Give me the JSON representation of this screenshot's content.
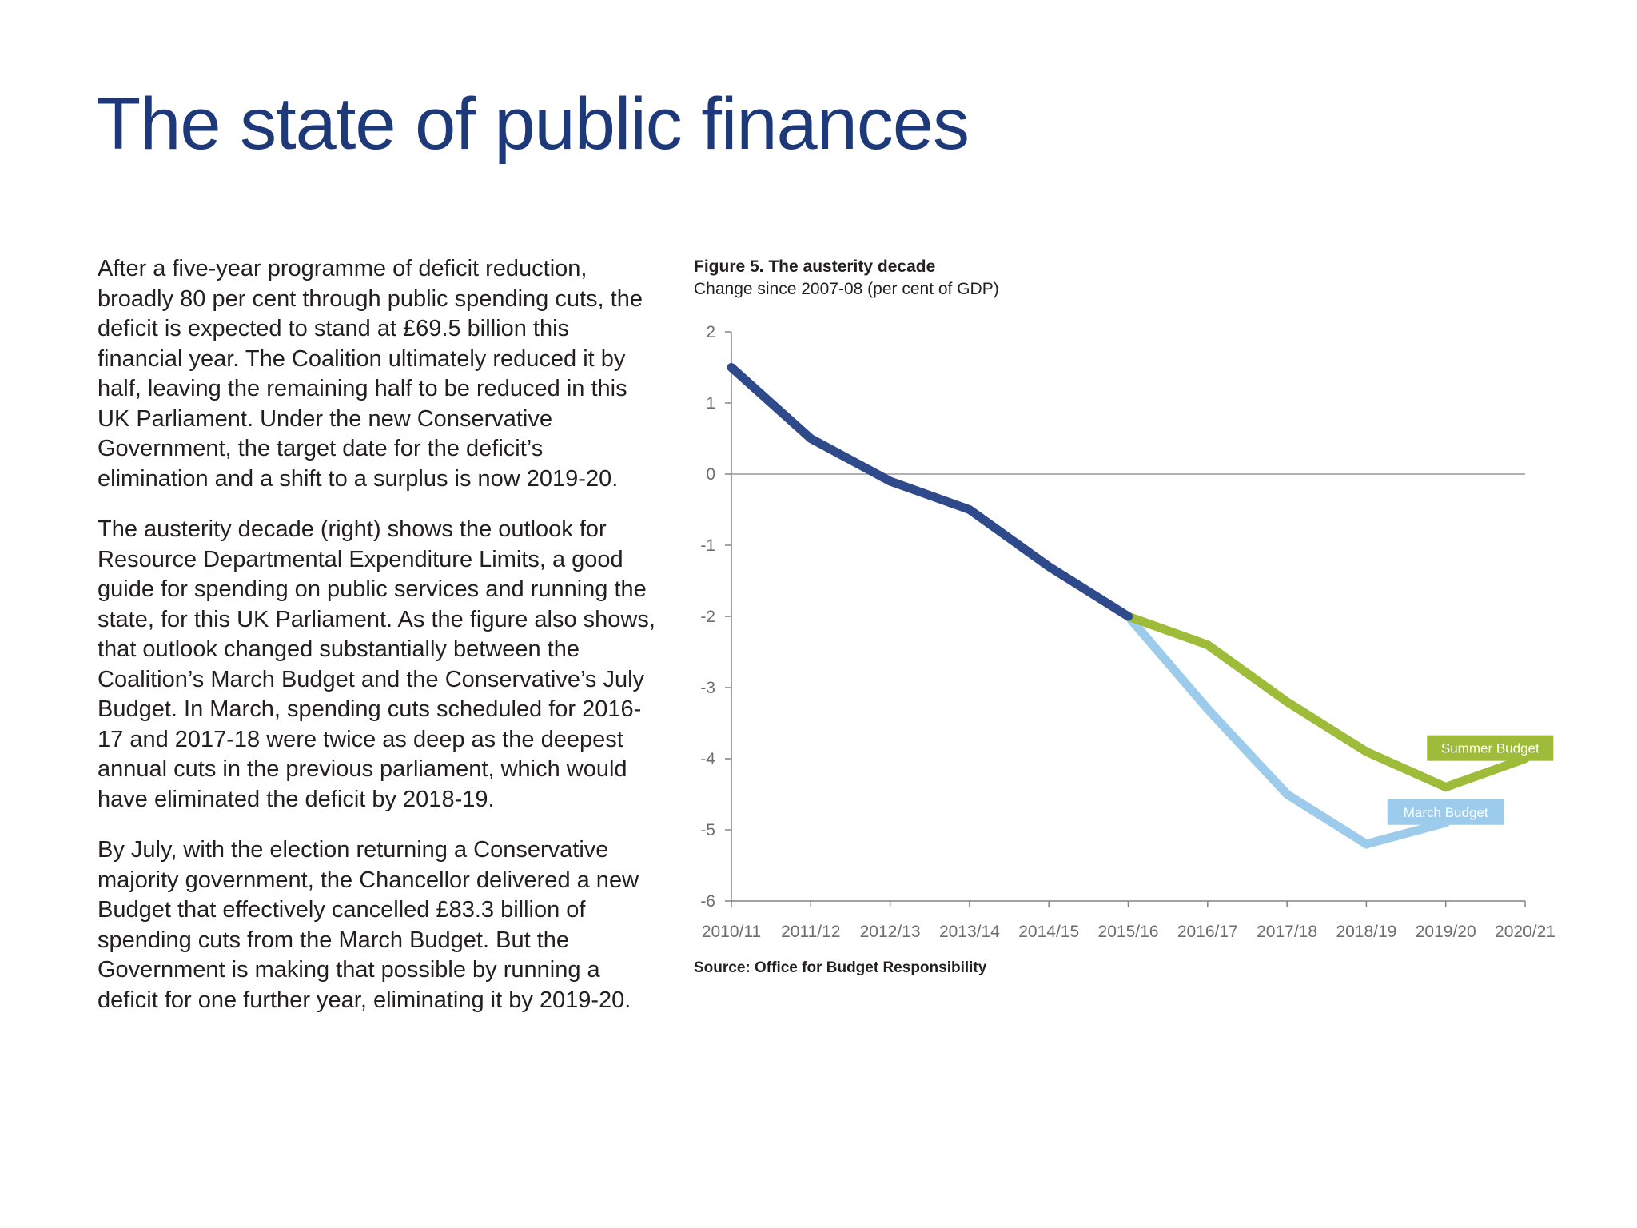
{
  "page": {
    "title": "The state of public finances",
    "paragraphs": [
      "After a five-year programme of deficit reduction, broadly 80 per cent through public spending cuts, the deficit is expected to stand at £69.5 billion this financial year. The Coalition ultimately reduced it by half, leaving the remaining half to be reduced in this UK Parliament. Under the new Conservative Government, the target date for the deficit’s elimination and a shift to a surplus is now 2019-20.",
      "The austerity decade (right) shows the outlook for Resource Departmental Expenditure Limits, a good guide for spending on public services and running the state, for this UK Parliament. As the figure also shows, that outlook changed substantially between the Coalition’s March Budget and the Conservative’s July Budget. In March, spending cuts scheduled for 2016-17 and 2017-18 were twice as deep as the deepest annual cuts in the previous parliament, which would have eliminated the deficit by 2018-19.",
      "By July, with the election returning a Conservative majority government, the Chancellor delivered a new Budget that effectively cancelled £83.3 billion of spending cuts from the March Budget. But the Government is making that possible by running a deficit for one further year, eliminating it by 2019-20."
    ],
    "source": "Source: Office for Budget Responsibility"
  },
  "chart_data": {
    "type": "line",
    "title": "Figure 5. The austerity decade",
    "subtitle": "Change since 2007-08 (per cent of GDP)",
    "xlabel": "",
    "ylabel": "",
    "ylim": [
      -6,
      2
    ],
    "yticks": [
      "2",
      "1",
      "0",
      "-1",
      "-2",
      "-3",
      "-4",
      "-5",
      "-6"
    ],
    "x": [
      "2010/11",
      "2011/12",
      "2012/13",
      "2013/14",
      "2014/15",
      "2015/16",
      "2016/17",
      "2017/18",
      "2018/19",
      "2019/20",
      "2020/21"
    ],
    "grid": false,
    "zero_line": true,
    "series": [
      {
        "name": "",
        "color": "#2e4a8a",
        "values": [
          1.5,
          0.5,
          -0.1,
          -0.5,
          -1.3,
          -2.0,
          null,
          null,
          null,
          null,
          null
        ]
      },
      {
        "name": "Summer Budget",
        "color": "#9fbb3a",
        "values": [
          null,
          null,
          null,
          null,
          null,
          -2.0,
          -2.4,
          -3.2,
          -3.9,
          -4.4,
          -4.0
        ]
      },
      {
        "name": "March Budget",
        "color": "#9ccbec",
        "values": [
          null,
          null,
          null,
          null,
          null,
          -2.0,
          -3.3,
          -4.5,
          -5.2,
          -4.9,
          null
        ]
      }
    ]
  }
}
